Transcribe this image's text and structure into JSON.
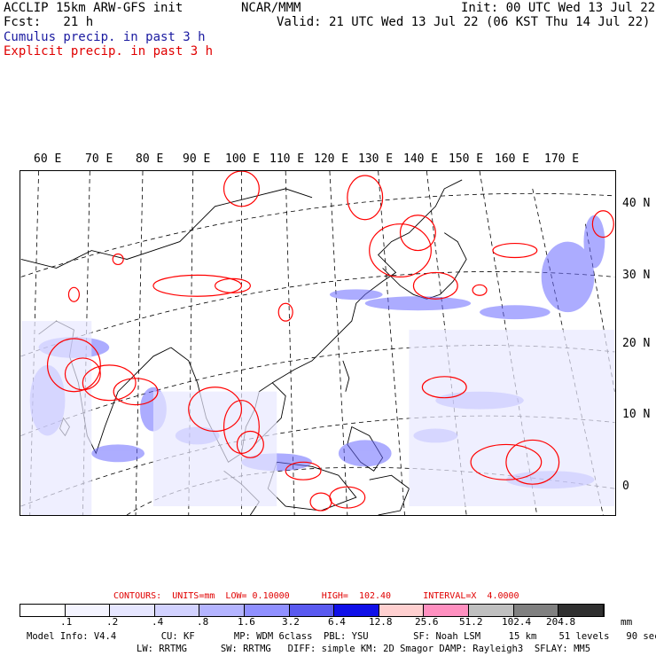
{
  "header": {
    "title": "ACCLIP 15km ARW-GFS init",
    "fcst": "Fcst:   21 h",
    "center": "NCAR/MMM",
    "init": "Init: 00 UTC Wed 13 Jul 22",
    "valid": "Valid: 21 UTC Wed 13 Jul 22 (06 KST Thu 14 Jul 22)",
    "cumulus": "Cumulus precip. in past 3 h",
    "explicit": "Explicit precip. in past 3 h"
  },
  "longitudes": [
    "60 E",
    "70 E",
    "80 E",
    "90 E",
    "100 E",
    "110 E",
    "120 E",
    "130 E",
    "140 E",
    "150 E",
    "160 E",
    "170 E"
  ],
  "latitudes": [
    "40 N",
    "30 N",
    "20 N",
    "10 N",
    "0"
  ],
  "contours": {
    "label": "CONTOURS:  UNITS=mm  LOW= 0.10000      HIGH=  102.40      INTERVAL=X  4.0000"
  },
  "colorbar": {
    "colors": [
      "#ffffff",
      "#f4f4ff",
      "#e6e6ff",
      "#d2d2ff",
      "#b4b4ff",
      "#9090ff",
      "#5a5af0",
      "#1010e8",
      "#ffd0d0",
      "#ff90c0",
      "#c0c0c0",
      "#808080",
      "#303030",
      "#d8a8ff"
    ],
    "ticks": [
      ".1",
      ".2",
      ".4",
      ".8",
      "1.6",
      "3.2",
      "6.4",
      "12.8",
      "25.6",
      "51.2",
      "102.4",
      "204.8"
    ],
    "unit": "mm"
  },
  "model_info": {
    "line1": "Model Info: V4.4        CU: KF       MP: WDM 6class  PBL: YSU        SF: Noah LSM     15 km    51 levels   90 sec",
    "line2": "LW: RRTMG      SW: RRTMG   DIFF: simple KM: 2D Smagor DAMP: Rayleigh3  SFLAY: MM5"
  }
}
